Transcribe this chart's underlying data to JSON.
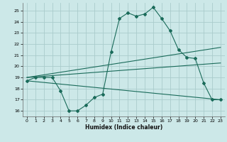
{
  "xlabel": "Humidex (Indice chaleur)",
  "bg_color": "#cce8e8",
  "grid_color": "#aacccc",
  "line_color": "#1a6b5a",
  "xlim": [
    -0.5,
    23.5
  ],
  "ylim": [
    15.5,
    25.7
  ],
  "xticks": [
    0,
    1,
    2,
    3,
    4,
    5,
    6,
    7,
    8,
    9,
    10,
    11,
    12,
    13,
    14,
    15,
    16,
    17,
    18,
    19,
    20,
    21,
    22,
    23
  ],
  "yticks": [
    16,
    17,
    18,
    19,
    20,
    21,
    22,
    23,
    24,
    25
  ],
  "line1": {
    "x": [
      0,
      1,
      2,
      3,
      4,
      5,
      6,
      7,
      8,
      9,
      10,
      11,
      12,
      13,
      14,
      15,
      16,
      17,
      18,
      19,
      20,
      21,
      22,
      23
    ],
    "y": [
      18.7,
      19.0,
      19.0,
      19.0,
      17.8,
      16.0,
      16.0,
      16.5,
      17.2,
      17.5,
      21.3,
      24.3,
      24.8,
      24.5,
      24.7,
      25.3,
      24.3,
      23.2,
      21.5,
      20.8,
      20.7,
      18.5,
      17.0,
      17.0
    ]
  },
  "line2": {
    "x": [
      0,
      23
    ],
    "y": [
      19.0,
      21.7
    ]
  },
  "line3": {
    "x": [
      0,
      23
    ],
    "y": [
      19.0,
      20.3
    ]
  },
  "line4": {
    "x": [
      0,
      23
    ],
    "y": [
      18.7,
      17.0
    ]
  }
}
